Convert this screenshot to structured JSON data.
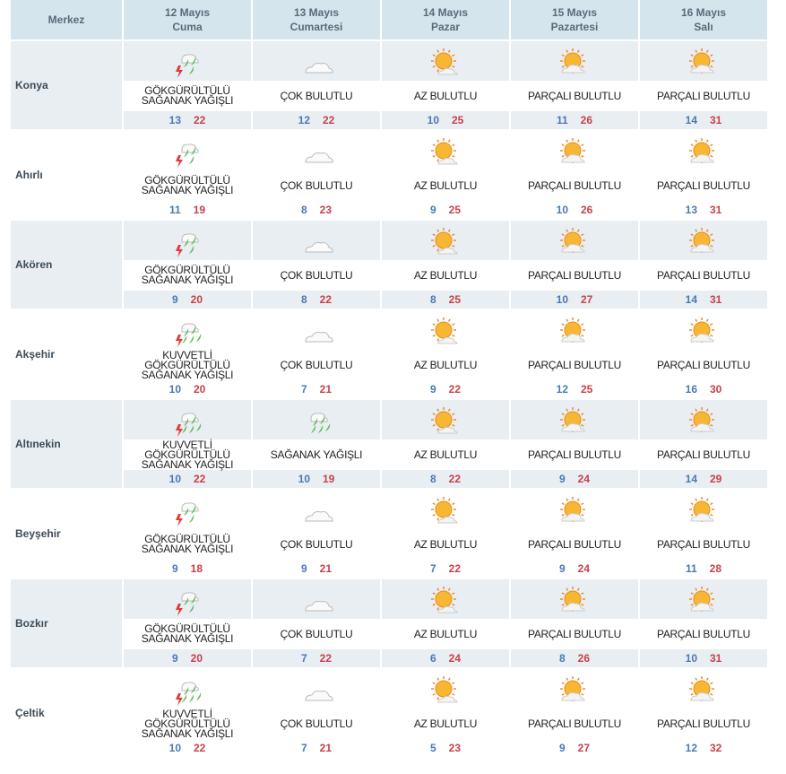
{
  "header": {
    "merkez": "Merkez",
    "days": [
      {
        "date": "12 Mayıs",
        "day": "Cuma"
      },
      {
        "date": "13 Mayıs",
        "day": "Cumartesi"
      },
      {
        "date": "14 Mayıs",
        "day": "Pazar"
      },
      {
        "date": "15 Mayıs",
        "day": "Pazartesi"
      },
      {
        "date": "16 Mayıs",
        "day": "Salı"
      }
    ]
  },
  "colors": {
    "header_bg": "#d5e5ee",
    "shade": "#e8eef2",
    "low": "#4a78b5",
    "high": "#c8404a"
  },
  "rows": [
    {
      "city": "Konya",
      "days": [
        {
          "icon": "thunder-rain",
          "desc": "GÖKGÜRÜLTÜLÜ SAĞANAK YAĞIŞLI",
          "lo": "13",
          "hi": "22"
        },
        {
          "icon": "cloudy",
          "desc": "ÇOK BULUTLU",
          "lo": "12",
          "hi": "22"
        },
        {
          "icon": "mostly-sunny",
          "desc": "AZ BULUTLU",
          "lo": "10",
          "hi": "25"
        },
        {
          "icon": "partly-cloudy",
          "desc": "PARÇALI BULUTLU",
          "lo": "11",
          "hi": "26"
        },
        {
          "icon": "partly-cloudy",
          "desc": "PARÇALI BULUTLU",
          "lo": "14",
          "hi": "31"
        }
      ]
    },
    {
      "city": "Ahırlı",
      "days": [
        {
          "icon": "thunder-rain",
          "desc": "GÖKGÜRÜLTÜLÜ SAĞANAK YAĞIŞLI",
          "lo": "11",
          "hi": "19"
        },
        {
          "icon": "cloudy",
          "desc": "ÇOK BULUTLU",
          "lo": "8",
          "hi": "23"
        },
        {
          "icon": "mostly-sunny",
          "desc": "AZ BULUTLU",
          "lo": "9",
          "hi": "25"
        },
        {
          "icon": "partly-cloudy",
          "desc": "PARÇALI BULUTLU",
          "lo": "10",
          "hi": "26"
        },
        {
          "icon": "partly-cloudy",
          "desc": "PARÇALI BULUTLU",
          "lo": "13",
          "hi": "31"
        }
      ]
    },
    {
      "city": "Akören",
      "days": [
        {
          "icon": "thunder-rain",
          "desc": "GÖKGÜRÜLTÜLÜ SAĞANAK YAĞIŞLI",
          "lo": "9",
          "hi": "20"
        },
        {
          "icon": "cloudy",
          "desc": "ÇOK BULUTLU",
          "lo": "8",
          "hi": "22"
        },
        {
          "icon": "mostly-sunny",
          "desc": "AZ BULUTLU",
          "lo": "8",
          "hi": "25"
        },
        {
          "icon": "partly-cloudy",
          "desc": "PARÇALI BULUTLU",
          "lo": "10",
          "hi": "27"
        },
        {
          "icon": "partly-cloudy",
          "desc": "PARÇALI BULUTLU",
          "lo": "14",
          "hi": "31"
        }
      ]
    },
    {
      "city": "Akşehir",
      "days": [
        {
          "icon": "heavy-thunder-rain",
          "desc": "KUVVETLİ GÖKGÜRÜLTÜLÜ SAĞANAK YAĞIŞLI",
          "lo": "10",
          "hi": "20"
        },
        {
          "icon": "cloudy",
          "desc": "ÇOK BULUTLU",
          "lo": "7",
          "hi": "21"
        },
        {
          "icon": "mostly-sunny",
          "desc": "AZ BULUTLU",
          "lo": "9",
          "hi": "22"
        },
        {
          "icon": "partly-cloudy",
          "desc": "PARÇALI BULUTLU",
          "lo": "12",
          "hi": "25"
        },
        {
          "icon": "partly-cloudy",
          "desc": "PARÇALI BULUTLU",
          "lo": "16",
          "hi": "30"
        }
      ]
    },
    {
      "city": "Altınekin",
      "days": [
        {
          "icon": "heavy-thunder-rain",
          "desc": "KUVVETLİ GÖKGÜRÜLTÜLÜ SAĞANAK YAĞIŞLI",
          "lo": "10",
          "hi": "22"
        },
        {
          "icon": "showers",
          "desc": "SAĞANAK YAĞIŞLI",
          "lo": "10",
          "hi": "19"
        },
        {
          "icon": "mostly-sunny",
          "desc": "AZ BULUTLU",
          "lo": "8",
          "hi": "22"
        },
        {
          "icon": "partly-cloudy",
          "desc": "PARÇALI BULUTLU",
          "lo": "9",
          "hi": "24"
        },
        {
          "icon": "partly-cloudy",
          "desc": "PARÇALI BULUTLU",
          "lo": "14",
          "hi": "29"
        }
      ]
    },
    {
      "city": "Beyşehir",
      "days": [
        {
          "icon": "thunder-rain",
          "desc": "GÖKGÜRÜLTÜLÜ SAĞANAK YAĞIŞLI",
          "lo": "9",
          "hi": "18"
        },
        {
          "icon": "cloudy",
          "desc": "ÇOK BULUTLU",
          "lo": "9",
          "hi": "21"
        },
        {
          "icon": "mostly-sunny",
          "desc": "AZ BULUTLU",
          "lo": "7",
          "hi": "22"
        },
        {
          "icon": "partly-cloudy",
          "desc": "PARÇALI BULUTLU",
          "lo": "9",
          "hi": "24"
        },
        {
          "icon": "partly-cloudy",
          "desc": "PARÇALI BULUTLU",
          "lo": "11",
          "hi": "28"
        }
      ]
    },
    {
      "city": "Bozkır",
      "days": [
        {
          "icon": "thunder-rain",
          "desc": "GÖKGÜRÜLTÜLÜ SAĞANAK YAĞIŞLI",
          "lo": "9",
          "hi": "20"
        },
        {
          "icon": "cloudy",
          "desc": "ÇOK BULUTLU",
          "lo": "7",
          "hi": "22"
        },
        {
          "icon": "mostly-sunny",
          "desc": "AZ BULUTLU",
          "lo": "6",
          "hi": "24"
        },
        {
          "icon": "partly-cloudy",
          "desc": "PARÇALI BULUTLU",
          "lo": "8",
          "hi": "26"
        },
        {
          "icon": "partly-cloudy",
          "desc": "PARÇALI BULUTLU",
          "lo": "10",
          "hi": "31"
        }
      ]
    },
    {
      "city": "Çeltik",
      "days": [
        {
          "icon": "heavy-thunder-rain",
          "desc": "KUVVETLİ GÖKGÜRÜLTÜLÜ SAĞANAK YAĞIŞLI",
          "lo": "10",
          "hi": "22"
        },
        {
          "icon": "cloudy",
          "desc": "ÇOK BULUTLU",
          "lo": "7",
          "hi": "21"
        },
        {
          "icon": "mostly-sunny",
          "desc": "AZ BULUTLU",
          "lo": "5",
          "hi": "23"
        },
        {
          "icon": "partly-cloudy",
          "desc": "PARÇALI BULUTLU",
          "lo": "9",
          "hi": "27"
        },
        {
          "icon": "partly-cloudy",
          "desc": "PARÇALI BULUTLU",
          "lo": "12",
          "hi": "32"
        }
      ]
    }
  ]
}
